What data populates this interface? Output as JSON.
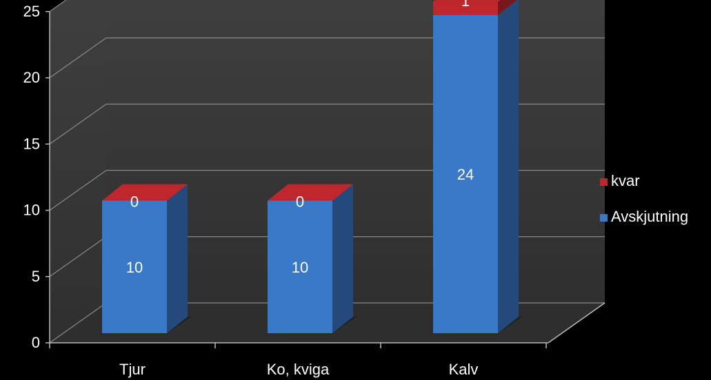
{
  "chart_data": {
    "type": "bar",
    "stacked": true,
    "three_d": true,
    "categories": [
      "Tjur",
      "Ko, kviga",
      "Kalv"
    ],
    "series": [
      {
        "name": "Avskjutning",
        "values": [
          10,
          10,
          24
        ],
        "color": "#3a78c8"
      },
      {
        "name": "kvar",
        "values": [
          0,
          0,
          1
        ],
        "color": "#c0272d"
      }
    ],
    "yticks": [
      "0",
      "5",
      "10",
      "15",
      "20",
      "25"
    ],
    "ylim": [
      0,
      25
    ],
    "grid": true,
    "legend": "right",
    "background": "#000000",
    "wall_color": "#3a3a3a",
    "floor_color": "#2e2e2e",
    "text_color": "#ffffff"
  }
}
